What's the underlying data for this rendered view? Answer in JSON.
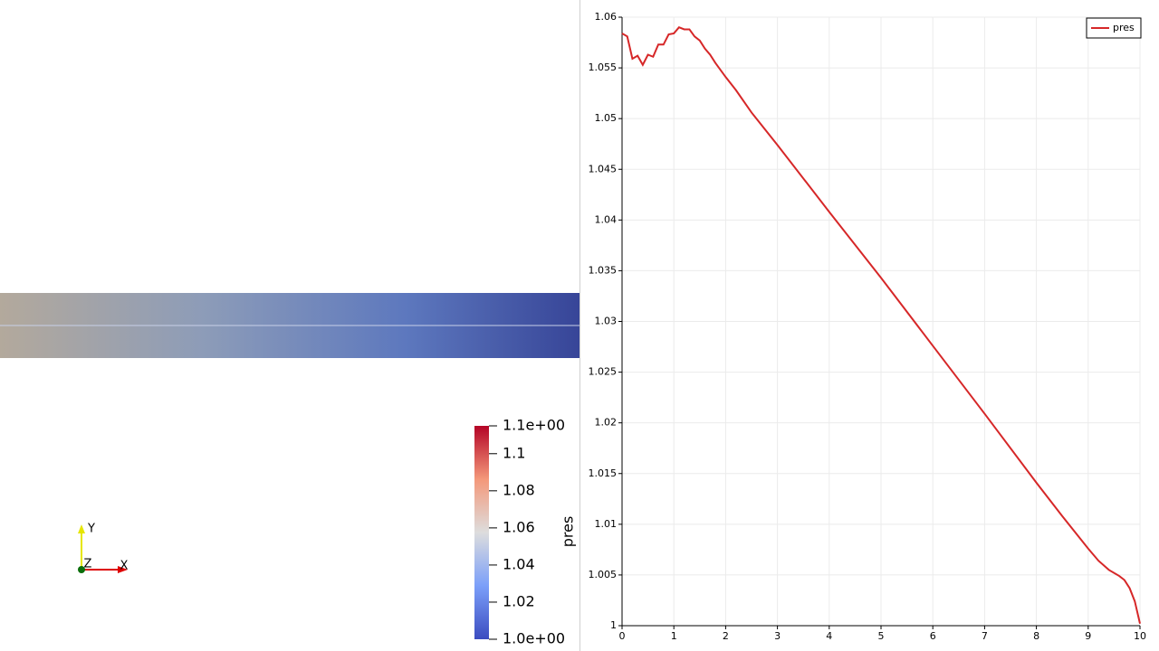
{
  "render_view": {
    "color_legend": {
      "title": "pres",
      "range": [
        1.0,
        1.115
      ],
      "ticks": [
        {
          "value": 1.115,
          "label": "1.1e+00"
        },
        1.1,
        1.08,
        1.06,
        1.04,
        1.02,
        {
          "value": 1.0,
          "label": "1.0e+00"
        }
      ]
    },
    "orientation_axes": {
      "labels": [
        "Y",
        "Z",
        "X"
      ]
    }
  },
  "chart_data": {
    "type": "line",
    "x": [
      0,
      0.1,
      0.2,
      0.3,
      0.4,
      0.5,
      0.6,
      0.7,
      0.8,
      0.9,
      1.0,
      1.1,
      1.2,
      1.3,
      1.4,
      1.5,
      1.6,
      1.7,
      1.8,
      2.0,
      2.2,
      2.5,
      3.0,
      4.0,
      5.0,
      6.0,
      7.0,
      8.0,
      8.5,
      9.0,
      9.2,
      9.4,
      9.6,
      9.7,
      9.8,
      9.9,
      10.0
    ],
    "series": [
      {
        "name": "pres",
        "color": "#d62728",
        "values": [
          1.0584,
          1.0581,
          1.0559,
          1.0562,
          1.0553,
          1.0563,
          1.0561,
          1.0573,
          1.0573,
          1.0583,
          1.0584,
          1.059,
          1.0588,
          1.0588,
          1.0581,
          1.0577,
          1.0569,
          1.0563,
          1.0555,
          1.0541,
          1.0528,
          1.0506,
          1.0474,
          1.0408,
          1.0343,
          1.0276,
          1.0209,
          1.0141,
          1.0108,
          1.0076,
          1.0064,
          1.0055,
          1.0049,
          1.0045,
          1.0037,
          1.0024,
          1.0002
        ]
      }
    ],
    "xlim": [
      0,
      10
    ],
    "ylim": [
      1,
      1.06
    ],
    "xticks": [
      0,
      1,
      2,
      3,
      4,
      5,
      6,
      7,
      8,
      9,
      10
    ],
    "yticks": [
      1,
      1.005,
      1.01,
      1.015,
      1.02,
      1.025,
      1.03,
      1.035,
      1.04,
      1.045,
      1.05,
      1.055,
      1.06
    ],
    "grid": true,
    "legend": "top-right"
  }
}
